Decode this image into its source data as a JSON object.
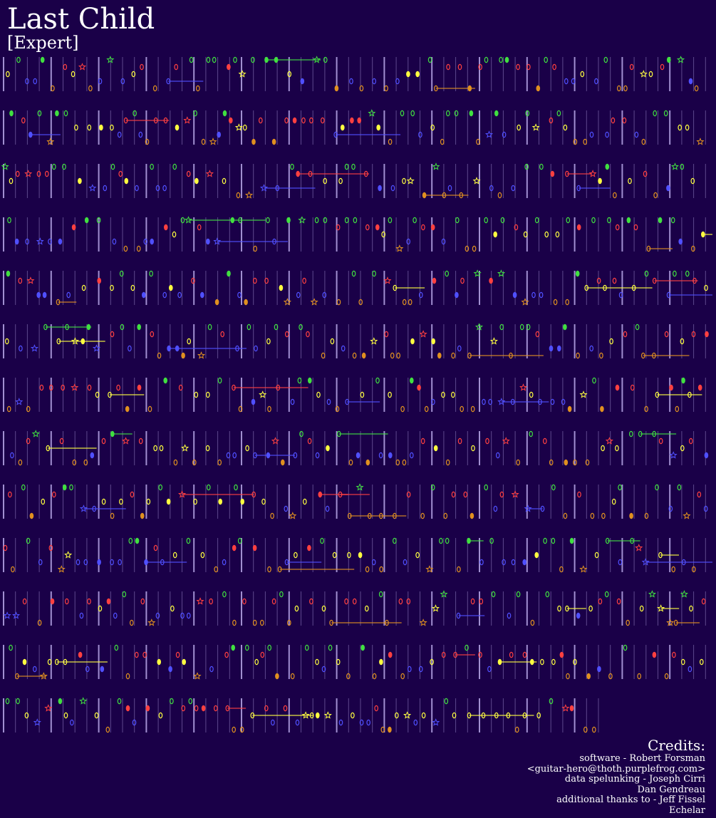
{
  "song": {
    "title": "Last Child",
    "difficulty": "[Expert]"
  },
  "credits": {
    "heading": "Credits:",
    "lines": [
      "software - Robert Forsman",
      "<guitar-hero@thoth.purplefrog.com>",
      "data spelunking - Joseph Cirri",
      "Dan Gendreau",
      "additional thanks to - Jeff Fissel",
      "Echelar"
    ]
  },
  "colors": {
    "background": "#1a0048",
    "green": "#40e040",
    "red": "#ff4040",
    "yellow": "#ffff40",
    "blue": "#5050ff",
    "orange": "#e09020",
    "beat_line": "#b0a0e0"
  },
  "chart_data": {
    "type": "note-track",
    "lanes": [
      "green",
      "red",
      "yellow",
      "blue",
      "orange"
    ],
    "rows": 13,
    "legend_note": "star shapes mark star-power notes; horizontal bars mark sustains"
  }
}
